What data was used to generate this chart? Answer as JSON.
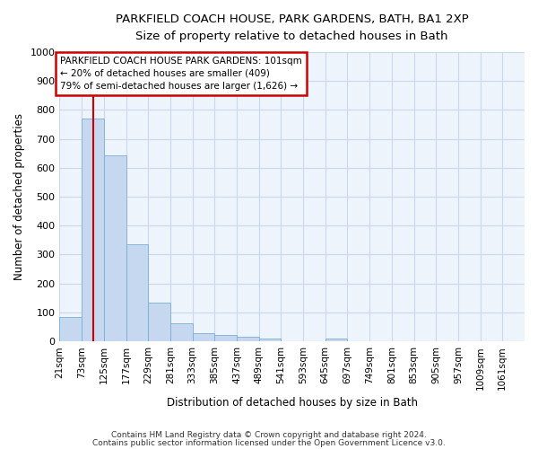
{
  "title": "PARKFIELD COACH HOUSE, PARK GARDENS, BATH, BA1 2XP",
  "subtitle": "Size of property relative to detached houses in Bath",
  "xlabel": "Distribution of detached houses by size in Bath",
  "ylabel": "Number of detached properties",
  "bar_color": "#c5d8f0",
  "bar_edge_color": "#7baed4",
  "fig_bg_color": "#ffffff",
  "axes_bg_color": "#eef4fc",
  "grid_color": "#c8d8ee",
  "annotation_text": "PARKFIELD COACH HOUSE PARK GARDENS: 101sqm\n← 20% of detached houses are smaller (409)\n79% of semi-detached houses are larger (1,626) →",
  "annotation_box_color": "#cc0000",
  "vline_x": 101,
  "vline_color": "#cc0000",
  "categories": [
    "21sqm",
    "73sqm",
    "125sqm",
    "177sqm",
    "229sqm",
    "281sqm",
    "333sqm",
    "385sqm",
    "437sqm",
    "489sqm",
    "541sqm",
    "593sqm",
    "645sqm",
    "697sqm",
    "749sqm",
    "801sqm",
    "853sqm",
    "905sqm",
    "957sqm",
    "1009sqm",
    "1061sqm"
  ],
  "bin_edges": [
    21,
    73,
    125,
    177,
    229,
    281,
    333,
    385,
    437,
    489,
    541,
    593,
    645,
    697,
    749,
    801,
    853,
    905,
    957,
    1009,
    1061
  ],
  "values": [
    85,
    770,
    643,
    335,
    135,
    62,
    27,
    22,
    17,
    10,
    0,
    0,
    10,
    0,
    0,
    0,
    0,
    0,
    0,
    0,
    0
  ],
  "ylim": [
    0,
    1000
  ],
  "yticks": [
    0,
    100,
    200,
    300,
    400,
    500,
    600,
    700,
    800,
    900,
    1000
  ],
  "footnote1": "Contains HM Land Registry data © Crown copyright and database right 2024.",
  "footnote2": "Contains public sector information licensed under the Open Government Licence v3.0."
}
